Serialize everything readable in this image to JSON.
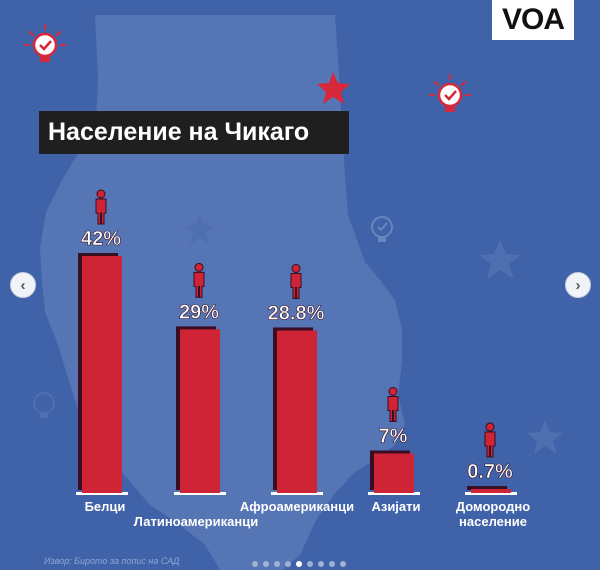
{
  "logo": {
    "text": "VOA"
  },
  "title": "Население на Чикаго",
  "source": "Извор: Бирото за попис на САД",
  "carousel": {
    "prev_icon": "chevron-left-icon",
    "next_icon": "chevron-right-icon",
    "prev_symbol": "‹",
    "next_symbol": "›",
    "slide_count": 9,
    "active_index": 4
  },
  "colors": {
    "background": "#3f62a9",
    "map": "#5675b4",
    "bar": "#cf2336",
    "bar_shadow": "#3a0d22",
    "text": "#ffffff",
    "title_bg": "#1f1f1f"
  },
  "chart_data": {
    "type": "bar",
    "categories": [
      "Белци",
      "Латиноамериканци",
      "Афроамериканци",
      "Азијати",
      "Домородно население"
    ],
    "category_lines": [
      [
        "Белци"
      ],
      [
        "Латиноамериканци"
      ],
      [
        "Афроамериканци"
      ],
      [
        "Азијати"
      ],
      [
        "Домородно",
        "население"
      ]
    ],
    "values": [
      42,
      29,
      28.8,
      7,
      0.7
    ],
    "value_labels": [
      "42%",
      "29%",
      "28.8%",
      "7%",
      "0.7%"
    ],
    "unit": "%",
    "ylim": [
      0,
      42
    ],
    "grid": false,
    "legend": "none"
  }
}
